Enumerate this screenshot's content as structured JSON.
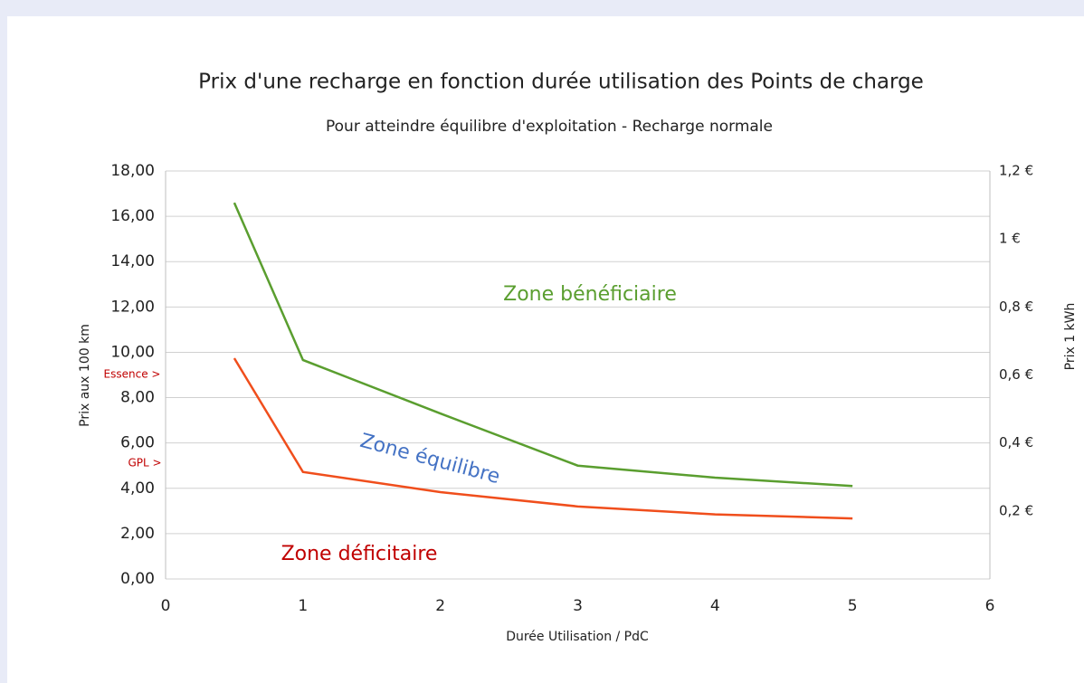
{
  "chart_data": {
    "type": "line",
    "title": "Prix d'une recharge en fonction durée utilisation des Points de charge",
    "subtitle": "Pour atteindre équilibre d'exploitation - Recharge normale",
    "x_label": "Durée Utilisation / PdC",
    "y_label": "Prix aux 100 km",
    "y2_label": "Prix 1 kWh",
    "x": [
      0.5,
      1,
      2,
      3,
      4,
      5
    ],
    "series": [
      {
        "name": "Zone bénéficiaire",
        "color": "#5a9e2f",
        "values": [
          16.6,
          9.66,
          7.3,
          5.0,
          4.47,
          4.1
        ]
      },
      {
        "name": "Zone déficitaire",
        "color": "#f04e1c",
        "values": [
          9.74,
          4.72,
          3.83,
          3.2,
          2.85,
          2.67
        ]
      }
    ],
    "annotations": [
      {
        "text": "Zone bénéficiaire",
        "color": "#5a9e2f"
      },
      {
        "text": "Zone équilibre",
        "color": "#4472c4"
      },
      {
        "text": "Zone déficitaire",
        "color": "#c00000"
      },
      {
        "text": "Essence >",
        "color": "#c00000"
      },
      {
        "text": "GPL >",
        "color": "#c00000"
      }
    ],
    "xlim": [
      0,
      6
    ],
    "xticks": [
      0,
      1,
      2,
      3,
      4,
      5,
      6
    ],
    "ylim": [
      0,
      18
    ],
    "yticks": [
      {
        "value": 0,
        "label": "0,00"
      },
      {
        "value": 2,
        "label": "2,00"
      },
      {
        "value": 4,
        "label": "4,00"
      },
      {
        "value": 6,
        "label": "6,00"
      },
      {
        "value": 8,
        "label": "8,00"
      },
      {
        "value": 10,
        "label": "10,00"
      },
      {
        "value": 12,
        "label": "12,00"
      },
      {
        "value": 14,
        "label": "14,00"
      },
      {
        "value": 16,
        "label": "16,00"
      },
      {
        "value": 18,
        "label": "18,00"
      }
    ],
    "y2lim": [
      0,
      1.2
    ],
    "y2ticks": [
      {
        "value": 0.2,
        "label": "0,2 €"
      },
      {
        "value": 0.4,
        "label": "0,4 €"
      },
      {
        "value": 0.6,
        "label": "0,6 €"
      },
      {
        "value": 0.8,
        "label": "0,8 €"
      },
      {
        "value": 1,
        "label": "1 €"
      },
      {
        "value": 1.2,
        "label": "1,2 €"
      }
    ],
    "grid": true
  }
}
